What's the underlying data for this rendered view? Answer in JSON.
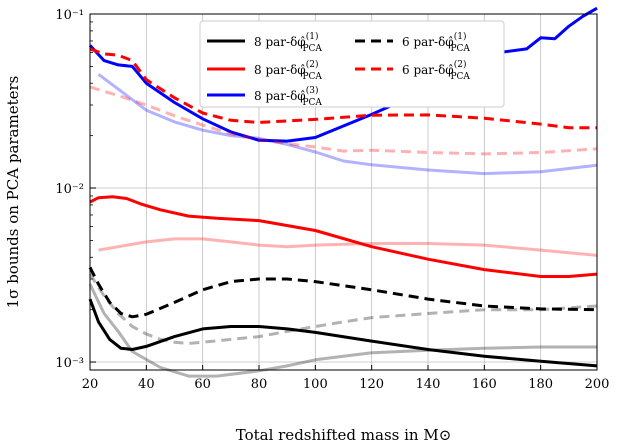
{
  "chart_data": {
    "type": "line",
    "xlabel": "Total redshifted mass in M⊙",
    "ylabel": "1σ bounds on PCA parameters",
    "xlim": [
      20,
      200
    ],
    "ylim": [
      0.0009,
      0.1
    ],
    "yscale": "log",
    "grid": true,
    "legend_position": "top-center",
    "x_ticks": [
      20,
      40,
      60,
      80,
      100,
      120,
      140,
      160,
      180,
      200
    ],
    "x_tick_labels": [
      "20",
      "40",
      "60",
      "80",
      "100",
      "120",
      "140",
      "160",
      "180",
      "200"
    ],
    "y_ticks": [
      0.001,
      0.01,
      0.1
    ],
    "y_tick_labels": [
      "10⁻³",
      "10⁻²",
      "10⁻¹"
    ],
    "series": [
      {
        "name": "8 par-δφ̂(1) PCA",
        "legend_label": "8 par-δφ̂",
        "superscript": "(1)",
        "subscript": "PCA",
        "color": "#000000",
        "style": "solid",
        "opacity": 1,
        "in_legend": true,
        "x": [
          20,
          23,
          27,
          31,
          35,
          40,
          50,
          60,
          70,
          80,
          90,
          100,
          120,
          140,
          160,
          180,
          200
        ],
        "y": [
          0.0023,
          0.0017,
          0.00135,
          0.0012,
          0.00118,
          0.00123,
          0.0014,
          0.00155,
          0.0016,
          0.0016,
          0.00155,
          0.00148,
          0.00132,
          0.00118,
          0.00108,
          0.00101,
          0.00095
        ]
      },
      {
        "name": "8 par-δφ̂(2) PCA",
        "legend_label": "8 par-δφ̂",
        "superscript": "(2)",
        "subscript": "PCA",
        "color": "#ff0000",
        "style": "solid",
        "opacity": 1,
        "in_legend": true,
        "x": [
          20,
          23,
          28,
          33,
          38,
          45,
          55,
          65,
          80,
          100,
          120,
          140,
          160,
          180,
          190,
          200
        ],
        "y": [
          0.0083,
          0.0088,
          0.0089,
          0.0087,
          0.0081,
          0.0075,
          0.0069,
          0.0067,
          0.0065,
          0.0057,
          0.0046,
          0.0039,
          0.0034,
          0.0031,
          0.0031,
          0.0032
        ]
      },
      {
        "name": "8 par-δφ̂(3) PCA",
        "legend_label": "8 par-δφ̂",
        "superscript": "(3)",
        "subscript": "PCA",
        "color": "#0000ff",
        "style": "solid",
        "opacity": 1,
        "in_legend": true,
        "x": [
          20,
          25,
          30,
          35,
          40,
          50,
          60,
          70,
          80,
          90,
          100,
          120,
          140,
          155,
          160,
          165,
          175,
          180,
          185,
          190,
          195,
          200
        ],
        "y": [
          0.066,
          0.054,
          0.051,
          0.05,
          0.04,
          0.031,
          0.025,
          0.021,
          0.0188,
          0.0186,
          0.0195,
          0.0265,
          0.037,
          0.05,
          0.051,
          0.06,
          0.063,
          0.073,
          0.072,
          0.085,
          0.097,
          0.108
        ]
      },
      {
        "name": "6 par-δφ̂(1) PCA",
        "legend_label": "6 par-δφ̂",
        "superscript": "(1)",
        "subscript": "PCA",
        "color": "#000000",
        "style": "dashed",
        "opacity": 1,
        "in_legend": true,
        "x": [
          20,
          23,
          27,
          31,
          35,
          40,
          50,
          60,
          70,
          80,
          90,
          100,
          120,
          140,
          160,
          180,
          200
        ],
        "y": [
          0.0035,
          0.0028,
          0.0022,
          0.0019,
          0.00182,
          0.00188,
          0.0022,
          0.0026,
          0.0029,
          0.003,
          0.003,
          0.0029,
          0.0026,
          0.0023,
          0.0021,
          0.00202,
          0.002
        ]
      },
      {
        "name": "6 par-δφ̂(2) PCA",
        "legend_label": "6 par-δφ̂",
        "superscript": "(2)",
        "subscript": "PCA",
        "color": "#ff0000",
        "style": "dashed",
        "opacity": 1,
        "in_legend": true,
        "x": [
          20,
          25,
          30,
          35,
          40,
          50,
          60,
          70,
          80,
          90,
          100,
          120,
          140,
          160,
          180,
          190,
          200
        ],
        "y": [
          0.063,
          0.059,
          0.058,
          0.054,
          0.042,
          0.033,
          0.027,
          0.0245,
          0.0238,
          0.0243,
          0.0248,
          0.0262,
          0.0263,
          0.0252,
          0.0233,
          0.0222,
          0.0222
        ]
      },
      {
        "name": "8 par light grey",
        "color": "#000000",
        "style": "solid",
        "opacity": 0.3,
        "in_legend": false,
        "x": [
          20,
          25,
          30,
          35,
          45,
          55,
          65,
          80,
          90,
          100,
          110,
          120,
          140,
          160,
          180,
          200
        ],
        "y": [
          0.0028,
          0.0019,
          0.0015,
          0.00115,
          0.00093,
          0.00083,
          0.00083,
          0.00089,
          0.00095,
          0.00103,
          0.00108,
          0.00113,
          0.00117,
          0.0012,
          0.00122,
          0.00122
        ]
      },
      {
        "name": "8 par light red",
        "color": "#ff0000",
        "style": "solid",
        "opacity": 0.3,
        "in_legend": false,
        "x": [
          23,
          30,
          40,
          50,
          60,
          70,
          80,
          90,
          100,
          120,
          140,
          160,
          180,
          200
        ],
        "y": [
          0.0044,
          0.0046,
          0.0049,
          0.0051,
          0.0051,
          0.0049,
          0.0047,
          0.0046,
          0.0047,
          0.0048,
          0.0048,
          0.0047,
          0.0044,
          0.0041
        ]
      },
      {
        "name": "8 par light blue",
        "color": "#0000ff",
        "style": "solid",
        "opacity": 0.3,
        "in_legend": false,
        "x": [
          23,
          30,
          40,
          50,
          60,
          70,
          80,
          90,
          100,
          110,
          120,
          140,
          160,
          180,
          200
        ],
        "y": [
          0.045,
          0.037,
          0.028,
          0.024,
          0.0215,
          0.02,
          0.0193,
          0.0178,
          0.0161,
          0.0143,
          0.0136,
          0.0127,
          0.0121,
          0.0124,
          0.0135
        ]
      },
      {
        "name": "6 par light grey dashed",
        "color": "#000000",
        "style": "dashed",
        "opacity": 0.3,
        "in_legend": false,
        "x": [
          20,
          25,
          30,
          35,
          40,
          45,
          50,
          55,
          60,
          70,
          80,
          90,
          100,
          110,
          120,
          140,
          160,
          180,
          200
        ],
        "y": [
          0.0032,
          0.0024,
          0.0019,
          0.0016,
          0.00145,
          0.00135,
          0.0013,
          0.00128,
          0.0013,
          0.00135,
          0.0014,
          0.0015,
          0.0016,
          0.0017,
          0.0018,
          0.0019,
          0.002,
          0.002,
          0.0021
        ]
      },
      {
        "name": "6 par light red dashed",
        "color": "#ff0000",
        "style": "dashed",
        "opacity": 0.3,
        "in_legend": false,
        "x": [
          20,
          30,
          40,
          50,
          60,
          70,
          80,
          90,
          100,
          110,
          120,
          140,
          160,
          180,
          200
        ],
        "y": [
          0.038,
          0.034,
          0.03,
          0.026,
          0.023,
          0.0205,
          0.019,
          0.018,
          0.0172,
          0.0163,
          0.0165,
          0.016,
          0.0157,
          0.016,
          0.0168
        ]
      }
    ]
  }
}
